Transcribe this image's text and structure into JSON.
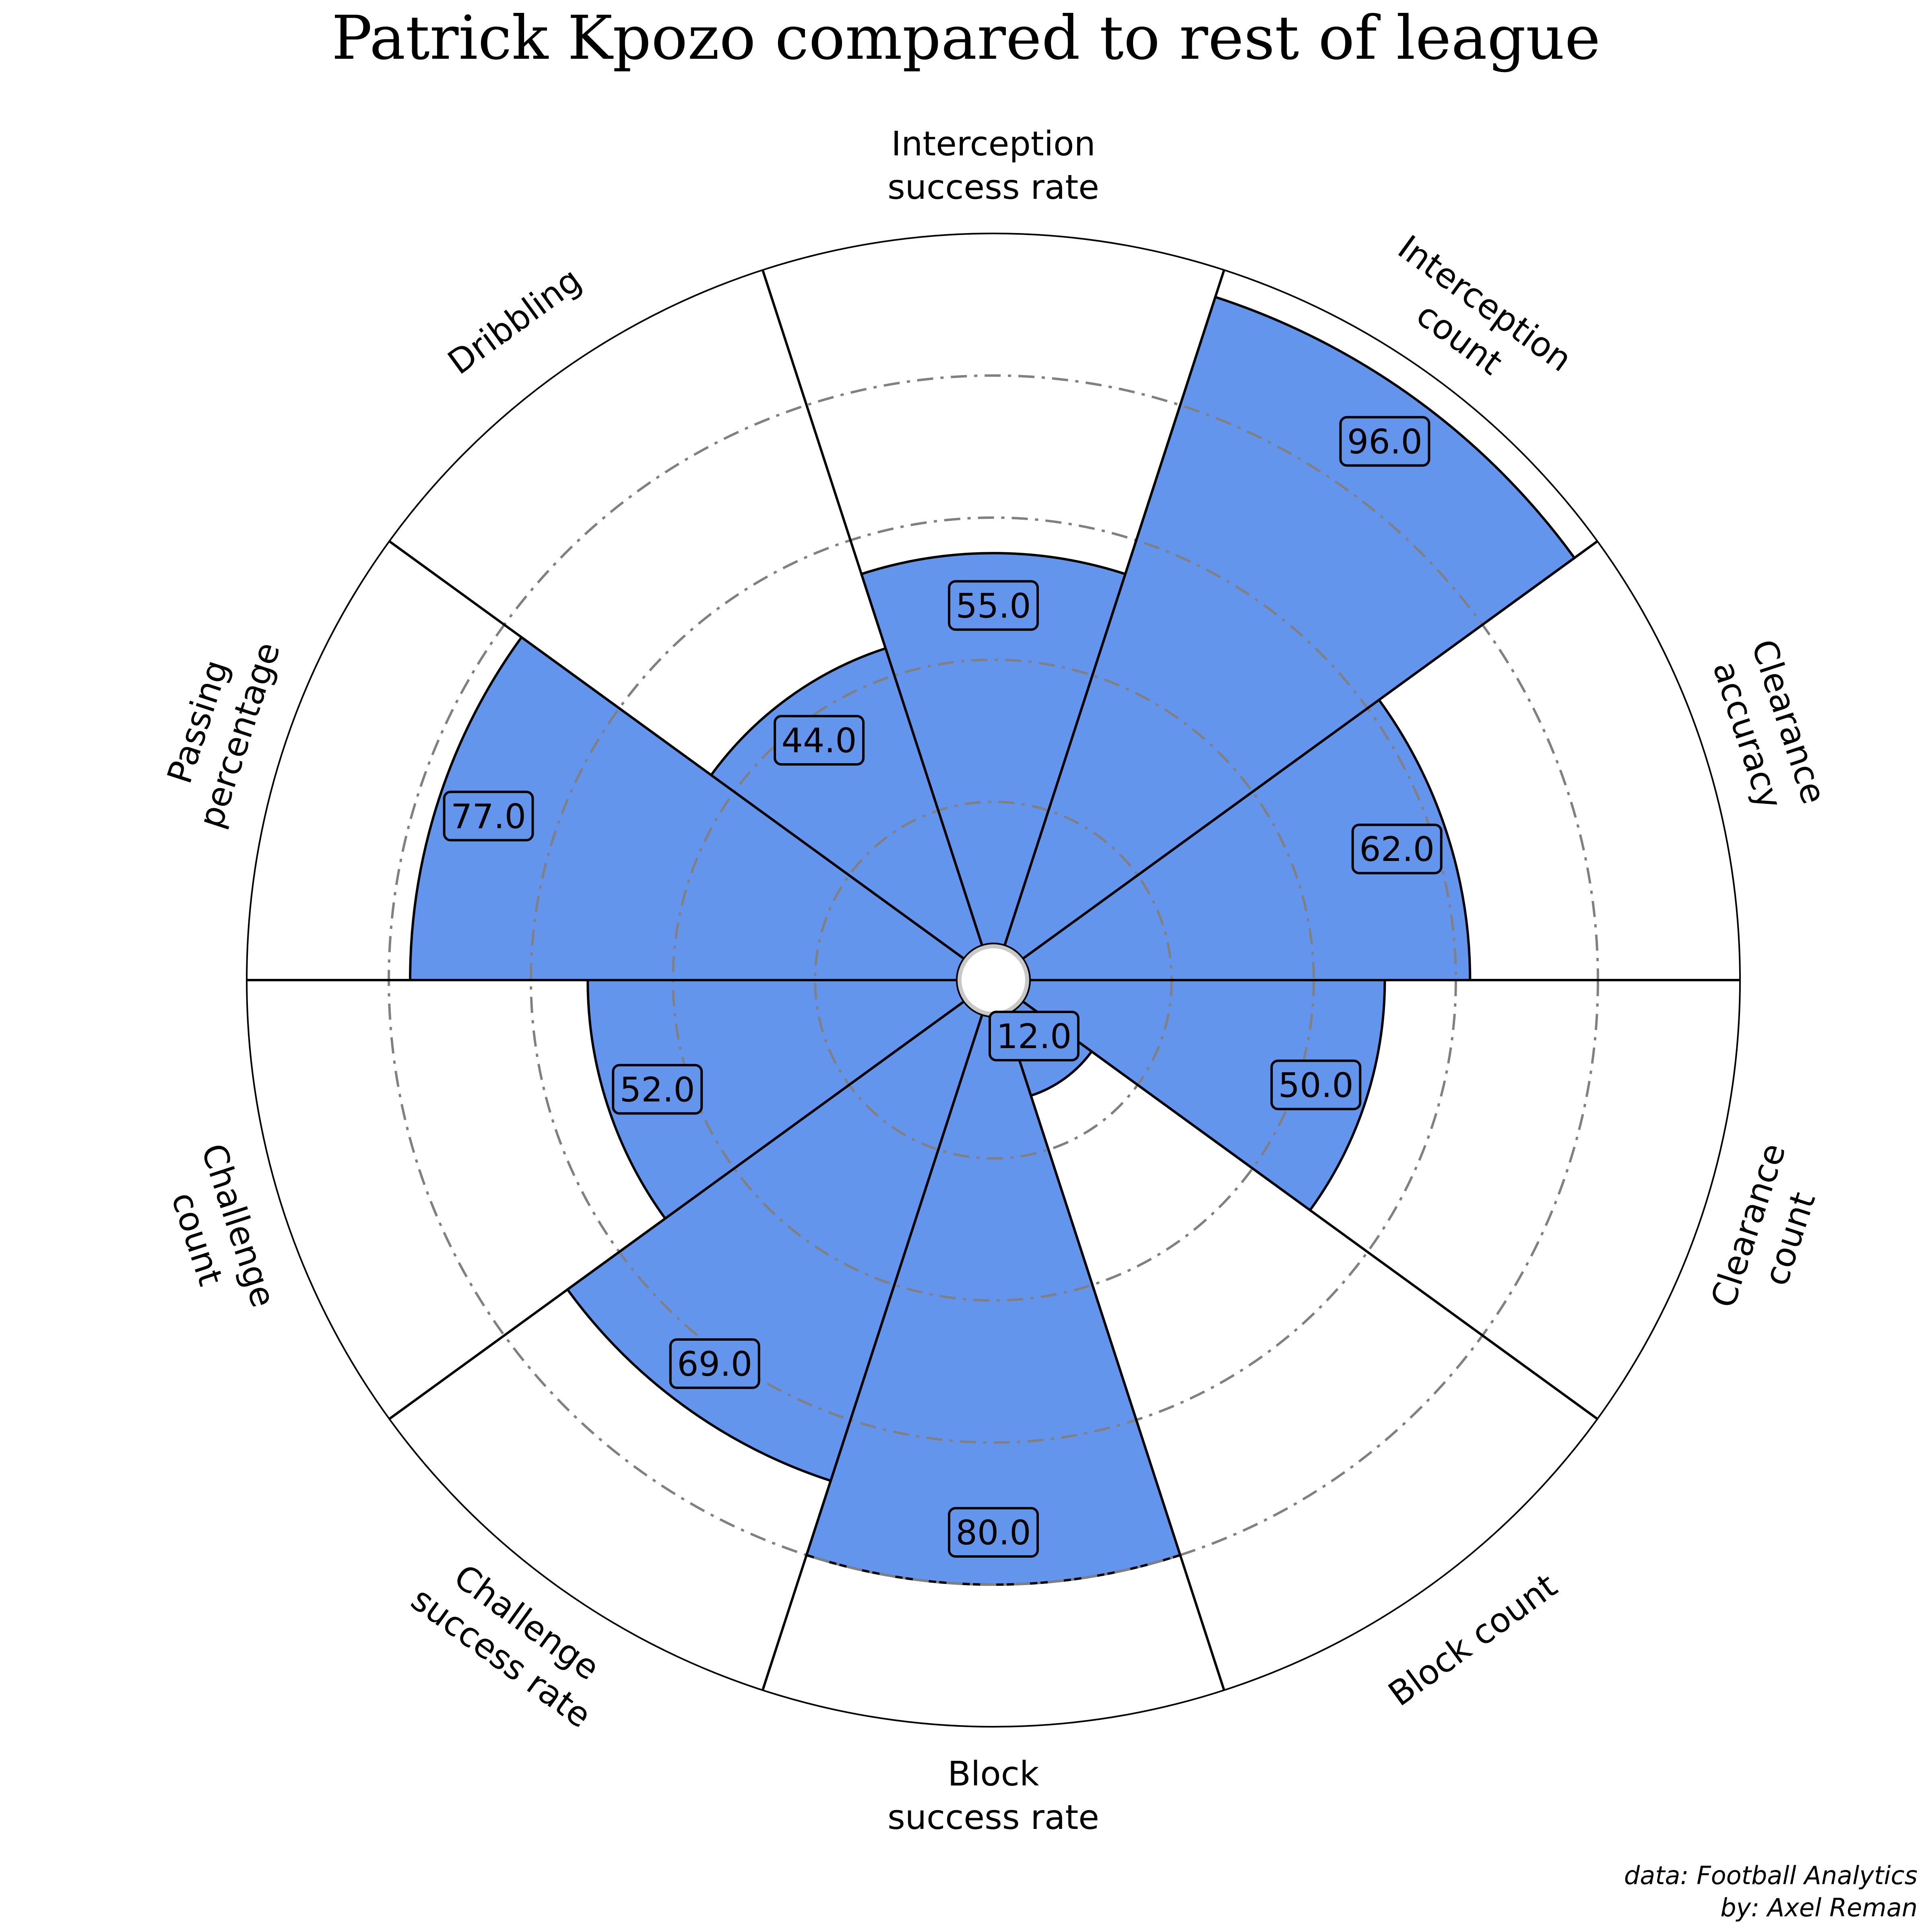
{
  "chart_data": {
    "type": "pie",
    "subtype": "polar-bar",
    "title": "Patrick Kpozo compared to rest of league",
    "categories": [
      "Interception\nsuccess rate",
      "Interception\ncount",
      "Clearance\naccuracy",
      "Clearance\ncount",
      "Block count",
      "Block\nsuccess rate",
      "Challenge\nsuccess rate",
      "Challenge\ncount",
      "Passing\npercentage",
      "Dribbling"
    ],
    "values": [
      55.0,
      96.0,
      62.0,
      50.0,
      12.0,
      80.0,
      69.0,
      52.0,
      77.0,
      44.0
    ],
    "value_labels": [
      "55.0",
      "96.0",
      "62.0",
      "50.0",
      "12.0",
      "80.0",
      "69.0",
      "52.0",
      "77.0",
      "44.0"
    ],
    "rlim": [
      0,
      100
    ],
    "rings": [
      20,
      40,
      60,
      80
    ],
    "grid": true,
    "start": "top",
    "direction": "clockwise"
  },
  "colors": {
    "bar_fill": "#6495ed",
    "edge": "#000000",
    "grid": "#808080",
    "center_ring": "#c8c8c8",
    "background": "#ffffff"
  },
  "credits": {
    "data": "data: Football Analytics",
    "author": "by: Axel Reman"
  }
}
